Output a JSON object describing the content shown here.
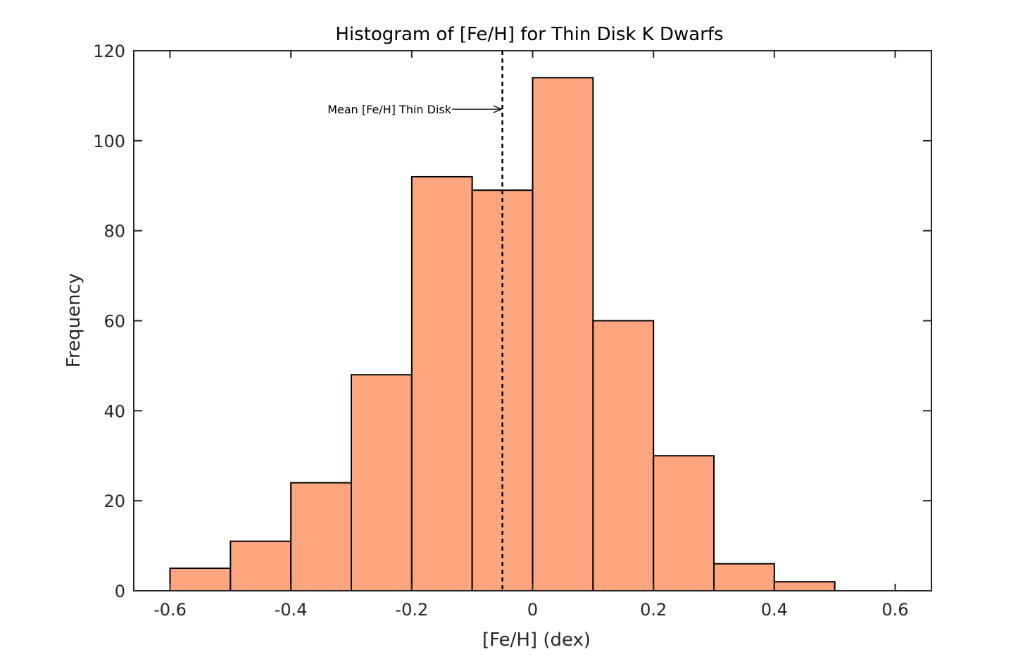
{
  "chart_data": {
    "type": "bar",
    "title": "Histogram of [Fe/H] for Thin Disk K Dwarfs",
    "xlabel": "[Fe/H] (dex)",
    "ylabel": "Frequency",
    "xlim": [
      -0.66,
      0.66
    ],
    "ylim": [
      0,
      120
    ],
    "xticks": [
      -0.6,
      -0.4,
      -0.2,
      0,
      0.2,
      0.4,
      0.6
    ],
    "xtick_labels": [
      "-0.6",
      "-0.4",
      "-0.2",
      "0",
      "0.2",
      "0.4",
      "0.6"
    ],
    "yticks": [
      0,
      20,
      40,
      60,
      80,
      100,
      120
    ],
    "ytick_labels": [
      "0",
      "20",
      "40",
      "60",
      "80",
      "100",
      "120"
    ],
    "bin_edges": [
      -0.6,
      -0.5,
      -0.4,
      -0.3,
      -0.2,
      -0.1,
      0.0,
      0.1,
      0.2,
      0.3,
      0.4,
      0.5
    ],
    "values": [
      5,
      11,
      24,
      48,
      92,
      89,
      114,
      60,
      30,
      6,
      2
    ],
    "bar_color": "#fca57e",
    "edge_color": "#000000",
    "grid": false,
    "mean_line": {
      "x": -0.05,
      "style": "dashed",
      "color": "#000000"
    },
    "annotation": {
      "text": "Mean [Fe/H] Thin Disk",
      "x": -0.05,
      "y": 107
    }
  }
}
